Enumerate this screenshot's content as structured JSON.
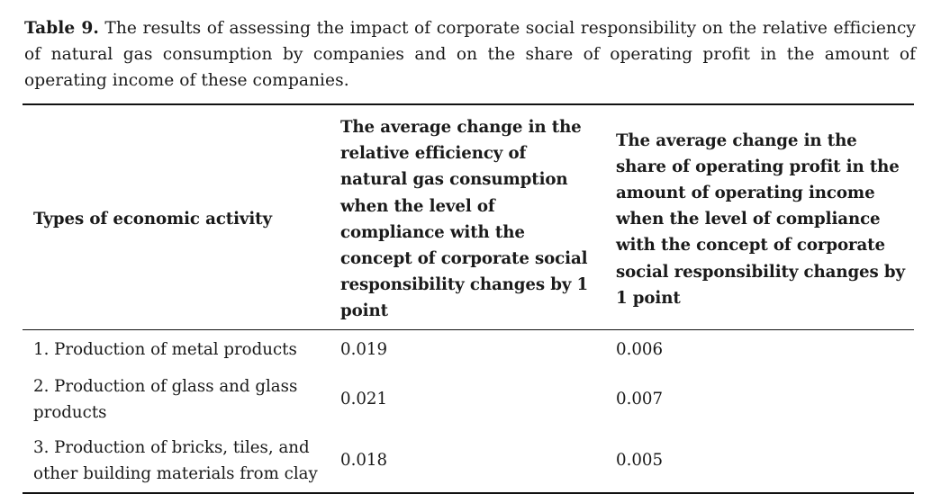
{
  "caption": {
    "label": "Table 9.",
    "text": " The results of assessing the impact of corporate social responsibility on the relative efficiency of natural gas consumption by companies and on the share of operating profit in the amount of operating income of these companies."
  },
  "table": {
    "headers": [
      "Types of economic activity",
      "The average change in the relative efficiency of natural gas consumption when the level of compliance with the concept of corporate social responsibility changes by 1 point",
      "The average change in the share of operating profit in the amount of operating income when the level of compliance with the concept of corporate social responsibility changes by 1 point"
    ],
    "rows": [
      [
        "1. Production of metal products",
        "0.019",
        "0.006"
      ],
      [
        "2. Production of glass and glass products",
        "0.021",
        "0.007"
      ],
      [
        "3. Production of bricks, tiles, and other building materials from clay",
        "0.018",
        "0.005"
      ]
    ]
  }
}
